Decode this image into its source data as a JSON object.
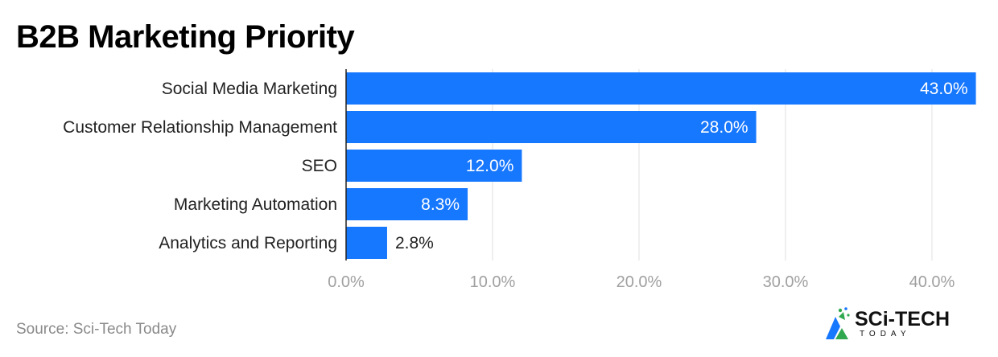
{
  "title": "B2B Marketing Priority",
  "source": "Source: Sci-Tech Today",
  "logo": {
    "text": "SCi-TECH",
    "sub": "TODAY"
  },
  "colors": {
    "bar": "#1677FF",
    "grid": "#e0e0e0",
    "tick": "#a0a0a0",
    "axis": "#222222"
  },
  "chart_data": {
    "type": "bar",
    "orientation": "horizontal",
    "categories": [
      "Social Media Marketing",
      "Customer Relationship Management",
      "SEO",
      "Marketing Automation",
      "Analytics and Reporting"
    ],
    "values": [
      43.0,
      28.0,
      12.0,
      8.3,
      2.8
    ],
    "value_labels": [
      "43.0%",
      "28.0%",
      "12.0%",
      "8.3%",
      "2.8%"
    ],
    "xticks": [
      0,
      10,
      20,
      30,
      40
    ],
    "xtick_labels": [
      "0.0%",
      "10.0%",
      "20.0%",
      "30.0%",
      "40.0%"
    ],
    "xlim": [
      0,
      43.3
    ],
    "grid": true,
    "legend": false
  }
}
